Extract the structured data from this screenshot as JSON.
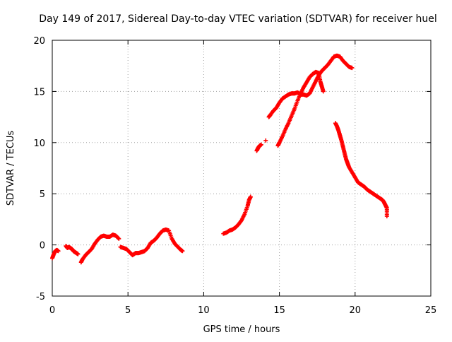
{
  "chart_data": {
    "type": "scatter",
    "title": "Day 149 of 2017, Sidereal Day-to-day VTEC variation (SDTVAR) for receiver huel",
    "xlabel": "GPS time / hours",
    "ylabel": "SDTVAR / TECUs",
    "xlim": [
      0,
      25
    ],
    "ylim": [
      -5,
      20
    ],
    "xticks": [
      0,
      5,
      10,
      15,
      20,
      25
    ],
    "yticks": [
      -5,
      0,
      5,
      10,
      15,
      20
    ],
    "grid": true,
    "marker": "+",
    "series": [
      {
        "name": "SDTVAR",
        "color": "#ff0000",
        "segments": [
          [
            [
              0.0,
              -1.3
            ],
            [
              0.1,
              -0.9
            ],
            [
              0.2,
              -0.6
            ],
            [
              0.3,
              -0.5
            ],
            [
              0.4,
              -0.6
            ]
          ],
          [
            [
              0.9,
              -0.1
            ],
            [
              1.0,
              -0.3
            ],
            [
              1.1,
              -0.2
            ],
            [
              1.2,
              -0.3
            ],
            [
              1.3,
              -0.4
            ],
            [
              1.4,
              -0.6
            ],
            [
              1.5,
              -0.7
            ],
            [
              1.6,
              -0.8
            ],
            [
              1.7,
              -0.9
            ]
          ],
          [
            [
              1.9,
              -1.7
            ],
            [
              2.0,
              -1.4
            ],
            [
              2.2,
              -1.0
            ],
            [
              2.4,
              -0.7
            ],
            [
              2.6,
              -0.4
            ],
            [
              2.8,
              0.1
            ],
            [
              3.0,
              0.5
            ],
            [
              3.2,
              0.8
            ],
            [
              3.4,
              0.9
            ],
            [
              3.6,
              0.8
            ],
            [
              3.8,
              0.8
            ],
            [
              4.0,
              1.0
            ],
            [
              4.2,
              0.9
            ],
            [
              4.4,
              0.6
            ]
          ],
          [
            [
              4.5,
              -0.2
            ],
            [
              4.7,
              -0.3
            ],
            [
              4.9,
              -0.4
            ],
            [
              5.1,
              -0.7
            ],
            [
              5.3,
              -1.0
            ],
            [
              5.5,
              -0.8
            ],
            [
              5.7,
              -0.8
            ],
            [
              5.9,
              -0.7
            ],
            [
              6.1,
              -0.6
            ],
            [
              6.3,
              -0.3
            ],
            [
              6.5,
              0.2
            ],
            [
              6.7,
              0.4
            ],
            [
              6.9,
              0.7
            ],
            [
              7.1,
              1.1
            ],
            [
              7.3,
              1.4
            ],
            [
              7.5,
              1.5
            ],
            [
              7.7,
              1.4
            ],
            [
              7.9,
              0.6
            ],
            [
              8.1,
              0.1
            ],
            [
              8.3,
              -0.2
            ],
            [
              8.5,
              -0.5
            ],
            [
              8.6,
              -0.6
            ]
          ],
          [
            [
              11.3,
              1.1
            ],
            [
              11.5,
              1.2
            ],
            [
              11.7,
              1.4
            ],
            [
              11.9,
              1.5
            ],
            [
              12.1,
              1.7
            ],
            [
              12.3,
              2.0
            ],
            [
              12.5,
              2.4
            ],
            [
              12.7,
              3.0
            ],
            [
              12.9,
              3.8
            ],
            [
              13.0,
              4.4
            ],
            [
              13.1,
              4.7
            ]
          ],
          [
            [
              13.5,
              9.2
            ],
            [
              13.6,
              9.5
            ],
            [
              13.7,
              9.7
            ],
            [
              13.8,
              9.8
            ]
          ],
          [
            [
              14.1,
              10.2
            ]
          ],
          [
            [
              14.3,
              12.5
            ],
            [
              14.4,
              12.7
            ],
            [
              14.6,
              13.1
            ],
            [
              14.8,
              13.4
            ],
            [
              15.0,
              13.9
            ],
            [
              15.2,
              14.3
            ],
            [
              15.4,
              14.5
            ],
            [
              15.6,
              14.7
            ],
            [
              15.8,
              14.8
            ],
            [
              16.0,
              14.8
            ],
            [
              16.2,
              14.9
            ],
            [
              16.4,
              14.7
            ],
            [
              16.6,
              14.7
            ],
            [
              16.8,
              14.6
            ],
            [
              17.0,
              14.8
            ],
            [
              17.2,
              15.4
            ],
            [
              17.4,
              16.0
            ],
            [
              17.6,
              16.6
            ],
            [
              17.8,
              17.0
            ],
            [
              18.0,
              17.3
            ],
            [
              18.2,
              17.6
            ],
            [
              18.4,
              18.0
            ],
            [
              18.6,
              18.4
            ],
            [
              18.8,
              18.5
            ],
            [
              19.0,
              18.4
            ],
            [
              19.2,
              18.0
            ],
            [
              19.4,
              17.7
            ],
            [
              19.6,
              17.4
            ],
            [
              19.8,
              17.3
            ]
          ],
          [
            [
              14.9,
              9.7
            ],
            [
              15.0,
              10.0
            ],
            [
              15.2,
              10.6
            ],
            [
              15.4,
              11.3
            ],
            [
              15.6,
              11.9
            ],
            [
              15.8,
              12.6
            ],
            [
              16.0,
              13.3
            ],
            [
              16.2,
              14.1
            ],
            [
              16.4,
              14.8
            ],
            [
              16.6,
              15.4
            ],
            [
              16.8,
              15.9
            ],
            [
              17.0,
              16.4
            ],
            [
              17.2,
              16.7
            ],
            [
              17.4,
              16.9
            ],
            [
              17.6,
              16.8
            ],
            [
              17.7,
              16.0
            ],
            [
              17.8,
              15.5
            ],
            [
              17.9,
              15.0
            ]
          ],
          [
            [
              18.7,
              11.9
            ],
            [
              18.8,
              11.6
            ],
            [
              18.9,
              11.2
            ],
            [
              19.0,
              10.7
            ],
            [
              19.1,
              10.2
            ],
            [
              19.2,
              9.6
            ],
            [
              19.3,
              9.0
            ],
            [
              19.4,
              8.4
            ],
            [
              19.5,
              8.0
            ],
            [
              19.6,
              7.6
            ],
            [
              19.8,
              7.1
            ],
            [
              20.0,
              6.6
            ],
            [
              20.2,
              6.1
            ],
            [
              20.4,
              5.9
            ],
            [
              20.6,
              5.7
            ],
            [
              20.8,
              5.4
            ],
            [
              21.0,
              5.2
            ],
            [
              21.2,
              5.0
            ],
            [
              21.4,
              4.8
            ],
            [
              21.6,
              4.6
            ],
            [
              21.8,
              4.4
            ],
            [
              21.9,
              4.2
            ],
            [
              22.0,
              3.9
            ],
            [
              22.1,
              3.6
            ],
            [
              22.1,
              2.8
            ]
          ]
        ]
      }
    ]
  }
}
